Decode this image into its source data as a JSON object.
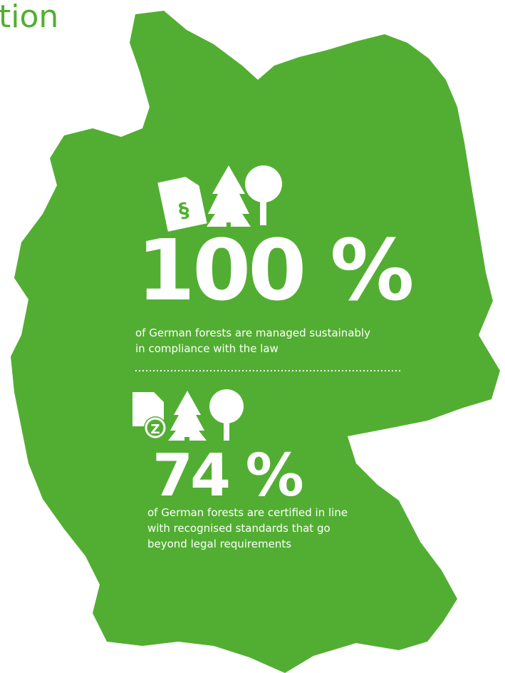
{
  "header": {
    "title": "tion"
  },
  "stats": [
    {
      "icon_label": "§",
      "value": "100 %",
      "lines": [
        "of German forests are managed sustainably",
        "in compliance with the law"
      ]
    },
    {
      "icon_label": "Z",
      "value": "74 %",
      "lines": [
        "of German forests are certified in line",
        "with recognised standards that go",
        "beyond legal requirements"
      ]
    }
  ]
}
